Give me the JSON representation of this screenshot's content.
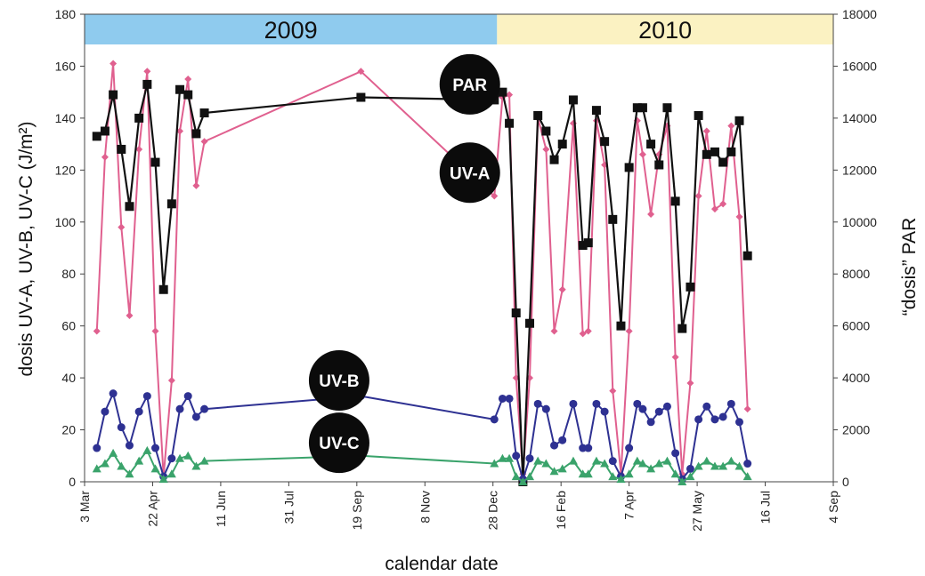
{
  "chart_data": {
    "type": "line",
    "xlabel": "calendar date",
    "ylabel_left": "dosis UV-A, UV-B, UV-C (J/m²)",
    "ylabel_right": "“dosis” PAR",
    "xlim": [
      "2009-03-03",
      "2010-09-04"
    ],
    "ylim_left": [
      0,
      180
    ],
    "ylim_right": [
      0,
      18000
    ],
    "yticks_left": [
      "0",
      "20",
      "40",
      "60",
      "80",
      "100",
      "120",
      "140",
      "160",
      "180"
    ],
    "yticks_right": [
      "0",
      "2000",
      "4000",
      "6000",
      "8000",
      "10000",
      "12000",
      "14000",
      "16000",
      "18000"
    ],
    "xticks": [
      {
        "date": "2009-03-03",
        "label": "3 Mar"
      },
      {
        "date": "2009-04-22",
        "label": "22 Apr"
      },
      {
        "date": "2009-06-11",
        "label": "11 Jun"
      },
      {
        "date": "2009-07-31",
        "label": "31 Jul"
      },
      {
        "date": "2009-09-19",
        "label": "19 Sep"
      },
      {
        "date": "2009-11-08",
        "label": "8 Nov"
      },
      {
        "date": "2009-12-28",
        "label": "28 Dec"
      },
      {
        "date": "2010-02-16",
        "label": "16 Feb"
      },
      {
        "date": "2010-04-07",
        "label": "7 Apr"
      },
      {
        "date": "2010-05-27",
        "label": "27 May"
      },
      {
        "date": "2010-07-16",
        "label": "16 Jul"
      },
      {
        "date": "2010-09-04",
        "label": "4 Sep"
      }
    ],
    "year_bands": [
      {
        "label": "2009",
        "from": "2009-03-03",
        "to": "2009-12-31",
        "color": "#8fcbee"
      },
      {
        "label": "2010",
        "from": "2009-12-31",
        "to": "2010-09-04",
        "color": "#fbf2c2"
      }
    ],
    "series": [
      {
        "name": "PAR",
        "axis": "right",
        "color": "#111111",
        "marker": "square",
        "points": [
          [
            "2009-03-12",
            13300
          ],
          [
            "2009-03-18",
            13500
          ],
          [
            "2009-03-24",
            14900
          ],
          [
            "2009-03-30",
            12800
          ],
          [
            "2009-04-05",
            10600
          ],
          [
            "2009-04-12",
            14000
          ],
          [
            "2009-04-18",
            15300
          ],
          [
            "2009-04-24",
            12300
          ],
          [
            "2009-04-30",
            7400
          ],
          [
            "2009-05-06",
            10700
          ],
          [
            "2009-05-12",
            15100
          ],
          [
            "2009-05-18",
            14900
          ],
          [
            "2009-05-24",
            13400
          ],
          [
            "2009-05-30",
            14200
          ],
          [
            "2009-09-22",
            14800
          ],
          [
            "2009-12-29",
            14700
          ],
          [
            "2010-01-04",
            15000
          ],
          [
            "2010-01-09",
            13800
          ],
          [
            "2010-01-14",
            6500
          ],
          [
            "2010-01-19",
            0
          ],
          [
            "2010-01-24",
            6100
          ],
          [
            "2010-01-30",
            14100
          ],
          [
            "2010-02-05",
            13500
          ],
          [
            "2010-02-11",
            12400
          ],
          [
            "2010-02-17",
            13000
          ],
          [
            "2010-02-25",
            14700
          ],
          [
            "2010-03-04",
            9100
          ],
          [
            "2010-03-08",
            9200
          ],
          [
            "2010-03-14",
            14300
          ],
          [
            "2010-03-20",
            13100
          ],
          [
            "2010-03-26",
            10100
          ],
          [
            "2010-04-01",
            6000
          ],
          [
            "2010-04-07",
            12100
          ],
          [
            "2010-04-13",
            14400
          ],
          [
            "2010-04-17",
            14400
          ],
          [
            "2010-04-23",
            13000
          ],
          [
            "2010-04-29",
            12200
          ],
          [
            "2010-05-05",
            14400
          ],
          [
            "2010-05-11",
            10800
          ],
          [
            "2010-05-16",
            5900
          ],
          [
            "2010-05-22",
            7500
          ],
          [
            "2010-05-28",
            14100
          ],
          [
            "2010-06-03",
            12600
          ],
          [
            "2010-06-09",
            12700
          ],
          [
            "2010-06-15",
            12300
          ],
          [
            "2010-06-21",
            12700
          ],
          [
            "2010-06-27",
            13900
          ],
          [
            "2010-07-03",
            8700
          ]
        ]
      },
      {
        "name": "UV-A",
        "axis": "left",
        "color": "#e0608f",
        "marker": "diamond",
        "points": [
          [
            "2009-03-12",
            58
          ],
          [
            "2009-03-18",
            125
          ],
          [
            "2009-03-24",
            161
          ],
          [
            "2009-03-30",
            98
          ],
          [
            "2009-04-05",
            64
          ],
          [
            "2009-04-12",
            128
          ],
          [
            "2009-04-18",
            158
          ],
          [
            "2009-04-24",
            58
          ],
          [
            "2009-04-30",
            2
          ],
          [
            "2009-05-06",
            39
          ],
          [
            "2009-05-12",
            135
          ],
          [
            "2009-05-18",
            155
          ],
          [
            "2009-05-24",
            114
          ],
          [
            "2009-05-30",
            131
          ],
          [
            "2009-09-22",
            158
          ],
          [
            "2009-12-29",
            110
          ],
          [
            "2010-01-04",
            148
          ],
          [
            "2010-01-09",
            149
          ],
          [
            "2010-01-14",
            40
          ],
          [
            "2010-01-19",
            3
          ],
          [
            "2010-01-24",
            40
          ],
          [
            "2010-01-30",
            140
          ],
          [
            "2010-02-05",
            128
          ],
          [
            "2010-02-11",
            58
          ],
          [
            "2010-02-17",
            74
          ],
          [
            "2010-02-25",
            138
          ],
          [
            "2010-03-04",
            57
          ],
          [
            "2010-03-08",
            58
          ],
          [
            "2010-03-14",
            139
          ],
          [
            "2010-03-20",
            122
          ],
          [
            "2010-03-26",
            35
          ],
          [
            "2010-04-01",
            3
          ],
          [
            "2010-04-07",
            58
          ],
          [
            "2010-04-13",
            139
          ],
          [
            "2010-04-17",
            126
          ],
          [
            "2010-04-23",
            103
          ],
          [
            "2010-04-29",
            126
          ],
          [
            "2010-05-05",
            137
          ],
          [
            "2010-05-11",
            48
          ],
          [
            "2010-05-16",
            3
          ],
          [
            "2010-05-22",
            38
          ],
          [
            "2010-05-28",
            110
          ],
          [
            "2010-06-03",
            135
          ],
          [
            "2010-06-09",
            105
          ],
          [
            "2010-06-15",
            107
          ],
          [
            "2010-06-21",
            137
          ],
          [
            "2010-06-27",
            102
          ],
          [
            "2010-07-03",
            28
          ]
        ]
      },
      {
        "name": "UV-B",
        "axis": "left",
        "color": "#2e3192",
        "marker": "circle",
        "points": [
          [
            "2009-03-12",
            13
          ],
          [
            "2009-03-18",
            27
          ],
          [
            "2009-03-24",
            34
          ],
          [
            "2009-03-30",
            21
          ],
          [
            "2009-04-05",
            14
          ],
          [
            "2009-04-12",
            27
          ],
          [
            "2009-04-18",
            33
          ],
          [
            "2009-04-24",
            13
          ],
          [
            "2009-04-30",
            2
          ],
          [
            "2009-05-06",
            9
          ],
          [
            "2009-05-12",
            28
          ],
          [
            "2009-05-18",
            33
          ],
          [
            "2009-05-24",
            25
          ],
          [
            "2009-05-30",
            28
          ],
          [
            "2009-09-22",
            33
          ],
          [
            "2009-12-29",
            24
          ],
          [
            "2010-01-04",
            32
          ],
          [
            "2010-01-09",
            32
          ],
          [
            "2010-01-14",
            10
          ],
          [
            "2010-01-19",
            1
          ],
          [
            "2010-01-24",
            9
          ],
          [
            "2010-01-30",
            30
          ],
          [
            "2010-02-05",
            28
          ],
          [
            "2010-02-11",
            14
          ],
          [
            "2010-02-17",
            16
          ],
          [
            "2010-02-25",
            30
          ],
          [
            "2010-03-04",
            13
          ],
          [
            "2010-03-08",
            13
          ],
          [
            "2010-03-14",
            30
          ],
          [
            "2010-03-20",
            27
          ],
          [
            "2010-03-26",
            8
          ],
          [
            "2010-04-01",
            2
          ],
          [
            "2010-04-07",
            13
          ],
          [
            "2010-04-13",
            30
          ],
          [
            "2010-04-17",
            28
          ],
          [
            "2010-04-23",
            23
          ],
          [
            "2010-04-29",
            27
          ],
          [
            "2010-05-05",
            29
          ],
          [
            "2010-05-11",
            11
          ],
          [
            "2010-05-16",
            1
          ],
          [
            "2010-05-22",
            5
          ],
          [
            "2010-05-28",
            24
          ],
          [
            "2010-06-03",
            29
          ],
          [
            "2010-06-09",
            24
          ],
          [
            "2010-06-15",
            25
          ],
          [
            "2010-06-21",
            30
          ],
          [
            "2010-06-27",
            23
          ],
          [
            "2010-07-03",
            7
          ]
        ]
      },
      {
        "name": "UV-C",
        "axis": "left",
        "color": "#3aa36b",
        "marker": "triangle",
        "points": [
          [
            "2009-03-12",
            5
          ],
          [
            "2009-03-18",
            7
          ],
          [
            "2009-03-24",
            11
          ],
          [
            "2009-03-30",
            6
          ],
          [
            "2009-04-05",
            3
          ],
          [
            "2009-04-12",
            8
          ],
          [
            "2009-04-18",
            12
          ],
          [
            "2009-04-24",
            5
          ],
          [
            "2009-04-30",
            1
          ],
          [
            "2009-05-06",
            3
          ],
          [
            "2009-05-12",
            9
          ],
          [
            "2009-05-18",
            10
          ],
          [
            "2009-05-24",
            6
          ],
          [
            "2009-05-30",
            8
          ],
          [
            "2009-09-22",
            10
          ],
          [
            "2009-12-29",
            7
          ],
          [
            "2010-01-04",
            9
          ],
          [
            "2010-01-09",
            9
          ],
          [
            "2010-01-14",
            2
          ],
          [
            "2010-01-19",
            0
          ],
          [
            "2010-01-24",
            2
          ],
          [
            "2010-01-30",
            8
          ],
          [
            "2010-02-05",
            7
          ],
          [
            "2010-02-11",
            4
          ],
          [
            "2010-02-17",
            5
          ],
          [
            "2010-02-25",
            8
          ],
          [
            "2010-03-04",
            3
          ],
          [
            "2010-03-08",
            3
          ],
          [
            "2010-03-14",
            8
          ],
          [
            "2010-03-20",
            7
          ],
          [
            "2010-03-26",
            2
          ],
          [
            "2010-04-01",
            1
          ],
          [
            "2010-04-07",
            3
          ],
          [
            "2010-04-13",
            8
          ],
          [
            "2010-04-17",
            7
          ],
          [
            "2010-04-23",
            5
          ],
          [
            "2010-04-29",
            7
          ],
          [
            "2010-05-05",
            8
          ],
          [
            "2010-05-11",
            3
          ],
          [
            "2010-05-16",
            0
          ],
          [
            "2010-05-22",
            2
          ],
          [
            "2010-05-28",
            6
          ],
          [
            "2010-06-03",
            8
          ],
          [
            "2010-06-09",
            6
          ],
          [
            "2010-06-15",
            6
          ],
          [
            "2010-06-21",
            8
          ],
          [
            "2010-06-27",
            6
          ],
          [
            "2010-07-03",
            2
          ]
        ]
      }
    ],
    "annotations": [
      {
        "text": "PAR",
        "series": "PAR",
        "date": "2009-12-11",
        "value_left": 153
      },
      {
        "text": "UV-A",
        "series": "UV-A",
        "date": "2009-12-11",
        "value_left": 119
      },
      {
        "text": "UV-B",
        "series": "UV-B",
        "date": "2009-09-06",
        "value_left": 39
      },
      {
        "text": "UV-C",
        "series": "UV-C",
        "date": "2009-09-06",
        "value_left": 15
      }
    ]
  }
}
